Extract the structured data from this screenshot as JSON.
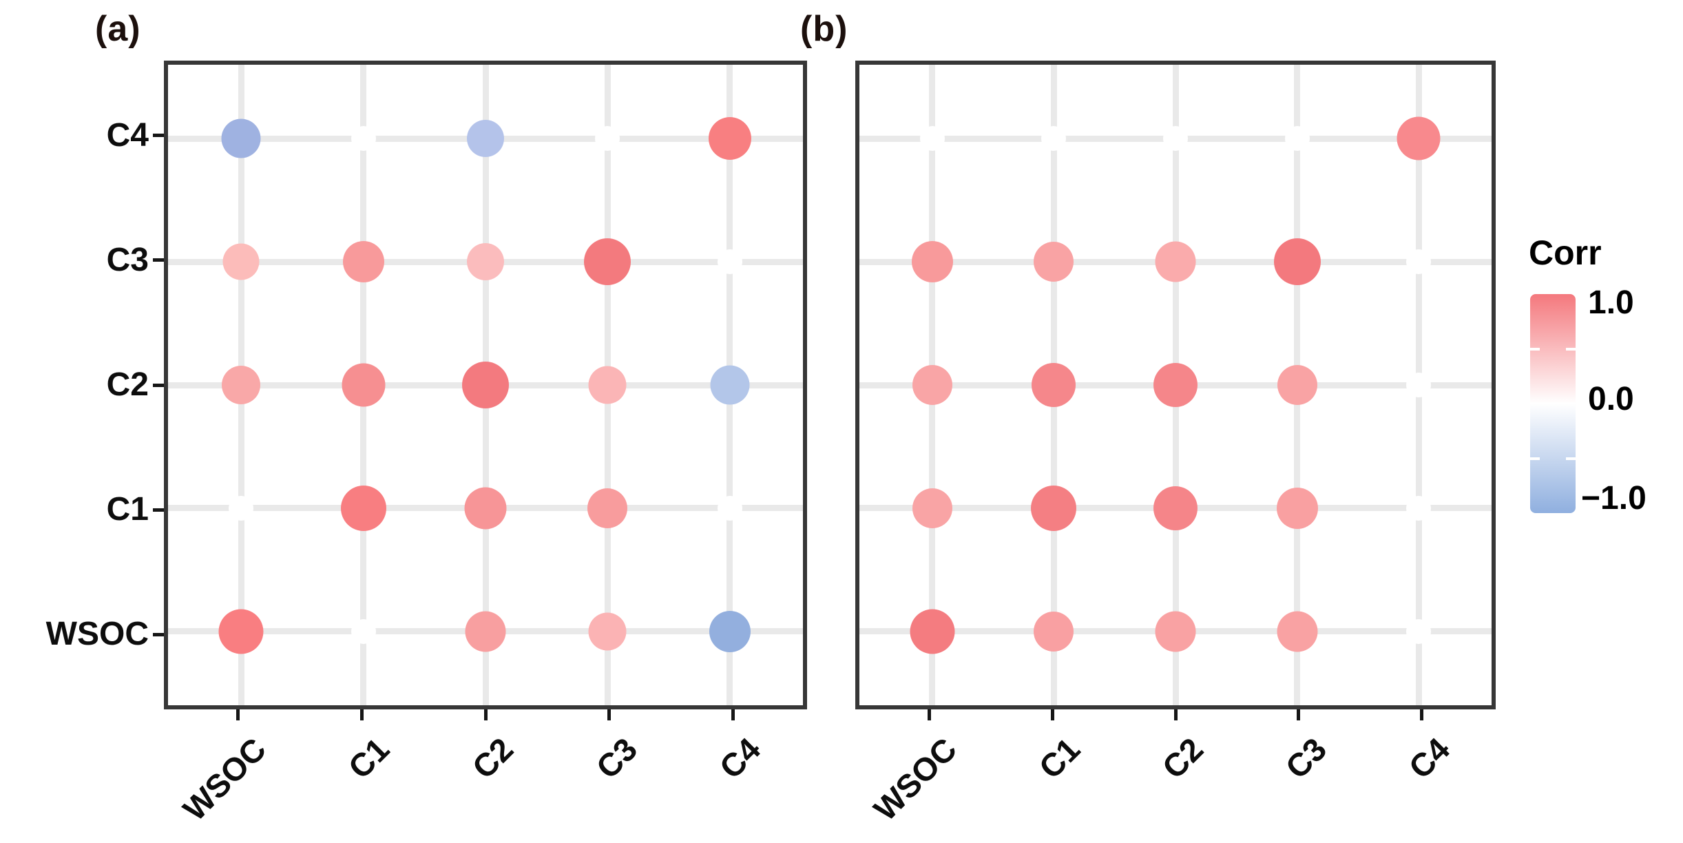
{
  "figure": {
    "panel_a_label": "(a)",
    "panel_b_label": "(b)"
  },
  "legend": {
    "title": "Corr",
    "tick_labels": [
      "1.0",
      "0.0",
      "−1.0"
    ]
  },
  "chart_data": {
    "type": "bubble",
    "subtype": "correlation-bubble-matrix",
    "title": "",
    "x_categories": [
      "WSOC",
      "C1",
      "C2",
      "C3",
      "C4"
    ],
    "y_categories_top_to_bottom": [
      "C4",
      "C3",
      "C2",
      "C1",
      "WSOC"
    ],
    "grid": true,
    "colorbar": {
      "title": "Corr",
      "tick_labels": [
        "1.0",
        "0.0",
        "−1.0"
      ],
      "tick_values": [
        1.0,
        0.0,
        -1.0
      ],
      "max_color": "#f4787d",
      "mid_color": "#ffffff",
      "min_color": "#8fafdf",
      "position": "right"
    },
    "panels": [
      {
        "label": "(a)",
        "points": [
          {
            "row": "C4",
            "col": "WSOC",
            "corr": -0.8,
            "color": "#9fb2e1",
            "size": 57
          },
          {
            "row": "C4",
            "col": "C2",
            "corr": -0.6,
            "color": "#b4c3ea",
            "size": 54
          },
          {
            "row": "C4",
            "col": "C4",
            "corr": 1.0,
            "color": "#f87f81",
            "size": 62
          },
          {
            "row": "C3",
            "col": "WSOC",
            "corr": 0.5,
            "color": "#fcbcba",
            "size": 53
          },
          {
            "row": "C3",
            "col": "C1",
            "corr": 0.7,
            "color": "#f89a9b",
            "size": 60
          },
          {
            "row": "C3",
            "col": "C2",
            "corr": 0.5,
            "color": "#fbbcbd",
            "size": 54
          },
          {
            "row": "C3",
            "col": "C3",
            "corr": 1.0,
            "color": "#f37a7e",
            "size": 68
          },
          {
            "row": "C2",
            "col": "WSOC",
            "corr": 0.65,
            "color": "#f9a8a8",
            "size": 56
          },
          {
            "row": "C2",
            "col": "C1",
            "corr": 0.8,
            "color": "#f68f91",
            "size": 63
          },
          {
            "row": "C2",
            "col": "C2",
            "corr": 1.0,
            "color": "#f37a7f",
            "size": 68
          },
          {
            "row": "C2",
            "col": "C3",
            "corr": 0.5,
            "color": "#fbb5b6",
            "size": 55
          },
          {
            "row": "C2",
            "col": "C4",
            "corr": -0.6,
            "color": "#b3c6e9",
            "size": 57
          },
          {
            "row": "C1",
            "col": "C1",
            "corr": 1.0,
            "color": "#f87e81",
            "size": 66
          },
          {
            "row": "C1",
            "col": "C2",
            "corr": 0.8,
            "color": "#f79597",
            "size": 61
          },
          {
            "row": "C1",
            "col": "C3",
            "corr": 0.7,
            "color": "#f89c9d",
            "size": 58
          },
          {
            "row": "WSOC",
            "col": "WSOC",
            "corr": 1.0,
            "color": "#f97e81",
            "size": 65
          },
          {
            "row": "WSOC",
            "col": "C2",
            "corr": 0.65,
            "color": "#f89fa0",
            "size": 59
          },
          {
            "row": "WSOC",
            "col": "C3",
            "corr": 0.5,
            "color": "#fbb3b4",
            "size": 55
          },
          {
            "row": "WSOC",
            "col": "C4",
            "corr": -0.8,
            "color": "#93afde",
            "size": 60
          }
        ]
      },
      {
        "label": "(b)",
        "points": [
          {
            "row": "C4",
            "col": "C4",
            "corr": 1.0,
            "color": "#f8898d",
            "size": 63
          },
          {
            "row": "C3",
            "col": "WSOC",
            "corr": 0.6,
            "color": "#f89a9b",
            "size": 60
          },
          {
            "row": "C3",
            "col": "C1",
            "corr": 0.6,
            "color": "#f9a3a4",
            "size": 58
          },
          {
            "row": "C3",
            "col": "C2",
            "corr": 0.55,
            "color": "#faabac",
            "size": 59
          },
          {
            "row": "C3",
            "col": "C3",
            "corr": 1.0,
            "color": "#f3797e",
            "size": 68
          },
          {
            "row": "C2",
            "col": "WSOC",
            "corr": 0.6,
            "color": "#f9a5a6",
            "size": 58
          },
          {
            "row": "C2",
            "col": "C1",
            "corr": 0.85,
            "color": "#f5878b",
            "size": 64
          },
          {
            "row": "C2",
            "col": "C2",
            "corr": 1.0,
            "color": "#f5868a",
            "size": 64
          },
          {
            "row": "C2",
            "col": "C3",
            "corr": 0.6,
            "color": "#f9a3a4",
            "size": 58
          },
          {
            "row": "C1",
            "col": "WSOC",
            "corr": 0.6,
            "color": "#f9a4a5",
            "size": 58
          },
          {
            "row": "C1",
            "col": "C1",
            "corr": 1.0,
            "color": "#f47f83",
            "size": 66
          },
          {
            "row": "C1",
            "col": "C2",
            "corr": 0.85,
            "color": "#f58589",
            "size": 64
          },
          {
            "row": "C1",
            "col": "C3",
            "corr": 0.6,
            "color": "#f9a0a1",
            "size": 60
          },
          {
            "row": "WSOC",
            "col": "WSOC",
            "corr": 1.0,
            "color": "#f47c80",
            "size": 65
          },
          {
            "row": "WSOC",
            "col": "C1",
            "corr": 0.6,
            "color": "#f9a0a2",
            "size": 58
          },
          {
            "row": "WSOC",
            "col": "C2",
            "corr": 0.6,
            "color": "#f9a2a3",
            "size": 59
          },
          {
            "row": "WSOC",
            "col": "C3",
            "corr": 0.6,
            "color": "#f9a2a3",
            "size": 59
          }
        ]
      }
    ]
  }
}
